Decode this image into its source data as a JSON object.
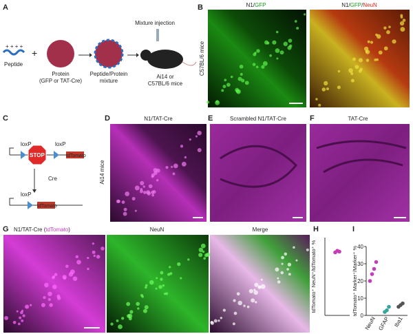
{
  "panels": {
    "A": {
      "letter": "A",
      "peptide": "Peptide",
      "protein": "Protein",
      "protein_note": "(GFP or TAT-Cre)",
      "mixture": "Peptide/Protein",
      "mixture2": "mixture",
      "injection": "Mixture injection",
      "mice": "Ai14 or",
      "mice2": "C57BL/6 mice"
    },
    "B": {
      "letter": "B",
      "row_label": "C57BL/6 mice",
      "left_title": [
        "N1/",
        "GFP"
      ],
      "right_title": [
        "N1/",
        "GFP",
        "/",
        "NeuN"
      ]
    },
    "C": {
      "letter": "C",
      "loxp": "loxP",
      "stop": "STOP",
      "reporter": "tdTomato",
      "cre": "Cre"
    },
    "D": {
      "letter": "D",
      "title": "N1/TAT-Cre",
      "row_label": "Ai14 mice"
    },
    "E": {
      "letter": "E",
      "title": "Scrambled N1/TAT-Cre"
    },
    "F": {
      "letter": "F",
      "title": "TAT-Cre"
    },
    "G": {
      "letter": "G",
      "titles": [
        [
          "N1/TAT-Cre (",
          "tdTomato",
          ")"
        ],
        [
          "NeuN"
        ],
        [
          "Merge"
        ]
      ]
    },
    "H": {
      "letter": "H",
      "chart_data": {
        "type": "scatter",
        "ylabel": "tdTomato⁺ NeuN⁺/tdTomato⁺ %",
        "ylim": [
          0,
          100
        ],
        "series": [
          {
            "color": "#c23fb5",
            "values": [
              81,
              83,
              82
            ]
          }
        ]
      }
    },
    "I": {
      "letter": "I",
      "chart_data": {
        "type": "scatter",
        "ylabel": "tdTomato⁺ Marker⁺/Marker⁺ %",
        "ylim": [
          0,
          40
        ],
        "yticks": [
          0,
          10,
          20,
          30,
          40
        ],
        "series": [
          {
            "name": "NeuN",
            "color": "#c23fb5",
            "values": [
              20,
              24,
              27,
              31
            ]
          },
          {
            "name": "GFAP",
            "color": "#36a59c",
            "values": [
              2,
              3,
              5
            ]
          },
          {
            "name": "Iba1",
            "color": "#555555",
            "values": [
              5,
              6,
              7
            ]
          }
        ]
      }
    }
  }
}
